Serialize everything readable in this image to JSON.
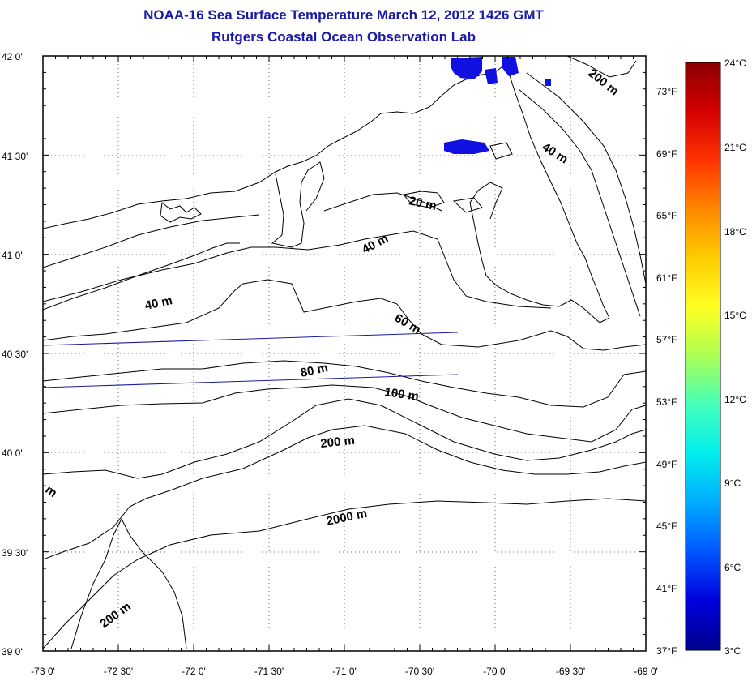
{
  "header": {
    "title": "NOAA-16 Sea Surface Temperature March 12, 2012 1426 GMT",
    "subtitle": "Rutgers Coastal Ocean Observation Lab"
  },
  "map": {
    "lon_ticks": [
      "-73 0'",
      "-72 30'",
      "-72 0'",
      "-71 30'",
      "-71 0'",
      "-70 30'",
      "-70 0'",
      "-69 30'",
      "-69 0'"
    ],
    "lat_ticks": [
      "42 0'",
      "41 30'",
      "41 0'",
      "40 30'",
      "40 0'",
      "39 30'",
      "39 0'"
    ],
    "lon_range": [
      -73,
      -69
    ],
    "lat_range": [
      39,
      42
    ],
    "right_fahrenheit_labels": [
      "73°F",
      "69°F",
      "65°F",
      "61°F",
      "57°F",
      "53°F",
      "49°F",
      "45°F",
      "41°F",
      "37°F"
    ],
    "contour_labels": [
      "200 m",
      "40 m",
      "20 m",
      "40 m",
      "40 m",
      "60 m",
      "80 m",
      "100 m",
      "200 m",
      "2000 m",
      "200 m",
      "m"
    ],
    "sst_patch_color": "#1010e0",
    "track_color": "#1a1aa0"
  },
  "colorbar": {
    "celsius_labels": [
      "24°C",
      "21°C",
      "18°C",
      "15°C",
      "12°C",
      "9°C",
      "6°C",
      "3°C"
    ],
    "celsius_range": [
      3,
      24
    ],
    "colors": [
      "#8b0000",
      "#d40000",
      "#ff3300",
      "#ff8800",
      "#ffcc00",
      "#ffff22",
      "#aaff55",
      "#44ffbb",
      "#00eeee",
      "#00aaff",
      "#0055ff",
      "#0000dd",
      "#00008b"
    ]
  }
}
